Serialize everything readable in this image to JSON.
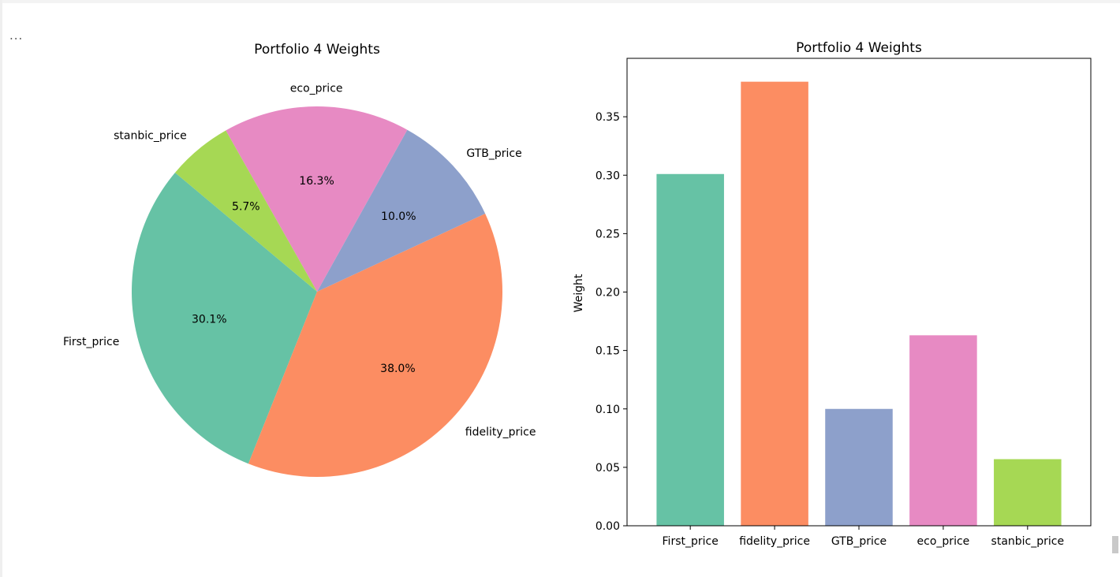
{
  "cell": {
    "ellipsis": "..."
  },
  "chart_data": [
    {
      "type": "pie",
      "title": "Portfolio 4 Weights",
      "labels": [
        "First_price",
        "fidelity_price",
        "GTB_price",
        "eco_price",
        "stanbic_price"
      ],
      "values": [
        0.301,
        0.38,
        0.1,
        0.163,
        0.057
      ],
      "pct_labels": [
        "30.1%",
        "38.0%",
        "10.0%",
        "16.3%",
        "5.7%"
      ],
      "colors": [
        "#66c2a5",
        "#fc8d62",
        "#8da0cb",
        "#e78ac3",
        "#a6d854"
      ],
      "start_angle_deg": 140
    },
    {
      "type": "bar",
      "title": "Portfolio 4 Weights",
      "categories": [
        "First_price",
        "fidelity_price",
        "GTB_price",
        "eco_price",
        "stanbic_price"
      ],
      "values": [
        0.301,
        0.38,
        0.1,
        0.163,
        0.057
      ],
      "colors": [
        "#66c2a5",
        "#fc8d62",
        "#8da0cb",
        "#e78ac3",
        "#a6d854"
      ],
      "ylabel": "Weight",
      "xlabel": "",
      "ylim": [
        0,
        0.4
      ],
      "yticks": [
        0.0,
        0.05,
        0.1,
        0.15,
        0.2,
        0.25,
        0.3,
        0.35
      ],
      "ytick_labels": [
        "0.00",
        "0.05",
        "0.10",
        "0.15",
        "0.20",
        "0.25",
        "0.30",
        "0.35"
      ]
    }
  ]
}
